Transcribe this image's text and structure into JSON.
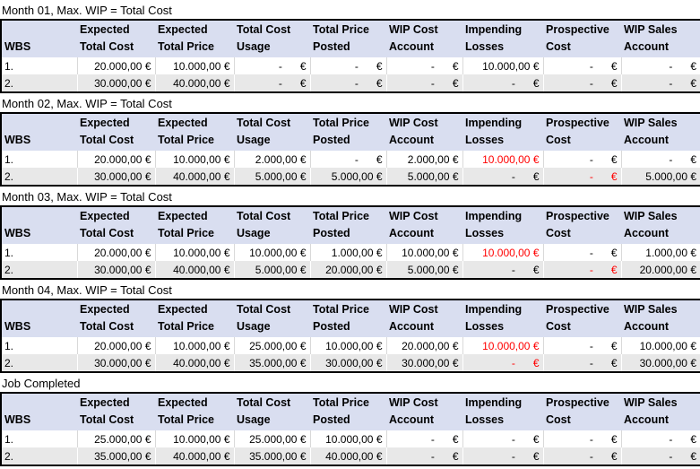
{
  "colors": {
    "header_bg": "#D9DEF0",
    "alt_row_bg": "#E8E8E8",
    "negative_red": "#FF0000",
    "table_border": "#000000",
    "white_row_separator": "#D9D9D9",
    "gray_row_separator": "#FFFFFF"
  },
  "columns": [
    {
      "line1": "",
      "line2": "WBS"
    },
    {
      "line1": "Expected",
      "line2": "Total Cost"
    },
    {
      "line1": "Expected",
      "line2": "Total Price"
    },
    {
      "line1": "Total Cost",
      "line2": "Usage"
    },
    {
      "line1": "Total Price",
      "line2": "Posted"
    },
    {
      "line1": "WIP Cost",
      "line2": "Account"
    },
    {
      "line1": "Impending",
      "line2": "Losses"
    },
    {
      "line1": "Prospective",
      "line2": "Cost"
    },
    {
      "line1": "WIP Sales",
      "line2": "Account"
    }
  ],
  "sections": [
    {
      "title": "Month 01, Max. WIP = Total Cost",
      "rows": [
        {
          "wbs": "1.",
          "cells": [
            {
              "text": "20.000,00 €"
            },
            {
              "text": "10.000,00 €"
            },
            {
              "text": "-      €"
            },
            {
              "text": "-      €"
            },
            {
              "text": "-      €"
            },
            {
              "text": "10.000,00 €"
            },
            {
              "text": "-      €"
            },
            {
              "text": "-      €"
            }
          ]
        },
        {
          "wbs": "2.",
          "cells": [
            {
              "text": "30.000,00 €"
            },
            {
              "text": "40.000,00 €"
            },
            {
              "text": "-      €"
            },
            {
              "text": "-      €"
            },
            {
              "text": "-      €"
            },
            {
              "text": "-      €"
            },
            {
              "text": "-      €"
            },
            {
              "text": "-      €"
            }
          ]
        }
      ]
    },
    {
      "title": "Month 02, Max. WIP = Total Cost",
      "rows": [
        {
          "wbs": "1.",
          "cells": [
            {
              "text": "20.000,00 €"
            },
            {
              "text": "10.000,00 €"
            },
            {
              "text": "2.000,00 €"
            },
            {
              "text": "-      €"
            },
            {
              "text": "2.000,00 €"
            },
            {
              "text": "10.000,00 €",
              "red": true
            },
            {
              "text": "-      €"
            },
            {
              "text": "-      €"
            }
          ]
        },
        {
          "wbs": "2.",
          "cells": [
            {
              "text": "30.000,00 €"
            },
            {
              "text": "40.000,00 €"
            },
            {
              "text": "5.000,00 €"
            },
            {
              "text": "5.000,00 €"
            },
            {
              "text": "5.000,00 €"
            },
            {
              "text": "-      €"
            },
            {
              "text": "-      €",
              "red": true
            },
            {
              "text": "5.000,00 €"
            }
          ]
        }
      ]
    },
    {
      "title": "Month 03, Max. WIP = Total Cost",
      "rows": [
        {
          "wbs": "1.",
          "cells": [
            {
              "text": "20.000,00 €"
            },
            {
              "text": "10.000,00 €"
            },
            {
              "text": "10.000,00 €"
            },
            {
              "text": "1.000,00 €"
            },
            {
              "text": "10.000,00 €"
            },
            {
              "text": "10.000,00 €",
              "red": true
            },
            {
              "text": "-      €"
            },
            {
              "text": "1.000,00 €"
            }
          ]
        },
        {
          "wbs": "2.",
          "cells": [
            {
              "text": "30.000,00 €"
            },
            {
              "text": "40.000,00 €"
            },
            {
              "text": "5.000,00 €"
            },
            {
              "text": "20.000,00 €"
            },
            {
              "text": "5.000,00 €"
            },
            {
              "text": "-      €"
            },
            {
              "text": "-      €",
              "red": true
            },
            {
              "text": "20.000,00 €"
            }
          ]
        }
      ]
    },
    {
      "title": "Month 04, Max. WIP = Total Cost",
      "rows": [
        {
          "wbs": "1.",
          "cells": [
            {
              "text": "20.000,00 €"
            },
            {
              "text": "10.000,00 €"
            },
            {
              "text": "25.000,00 €"
            },
            {
              "text": "10.000,00 €"
            },
            {
              "text": "20.000,00 €"
            },
            {
              "text": "10.000,00 €",
              "red": true
            },
            {
              "text": "-      €"
            },
            {
              "text": "10.000,00 €"
            }
          ]
        },
        {
          "wbs": "2.",
          "cells": [
            {
              "text": "30.000,00 €"
            },
            {
              "text": "40.000,00 €"
            },
            {
              "text": "35.000,00 €"
            },
            {
              "text": "30.000,00 €"
            },
            {
              "text": "30.000,00 €"
            },
            {
              "text": "-      €",
              "red": true
            },
            {
              "text": "-      €"
            },
            {
              "text": "30.000,00 €"
            }
          ]
        }
      ]
    },
    {
      "title": "Job Completed",
      "rows": [
        {
          "wbs": "1.",
          "cells": [
            {
              "text": "25.000,00 €"
            },
            {
              "text": "10.000,00 €"
            },
            {
              "text": "25.000,00 €"
            },
            {
              "text": "10.000,00 €"
            },
            {
              "text": "-      €"
            },
            {
              "text": "-      €"
            },
            {
              "text": "-      €"
            },
            {
              "text": "-      €"
            }
          ]
        },
        {
          "wbs": "2.",
          "cells": [
            {
              "text": "35.000,00 €"
            },
            {
              "text": "40.000,00 €"
            },
            {
              "text": "35.000,00 €"
            },
            {
              "text": "40.000,00 €"
            },
            {
              "text": "-      €"
            },
            {
              "text": "-      €"
            },
            {
              "text": "-      €"
            },
            {
              "text": "-      €"
            }
          ]
        }
      ]
    }
  ]
}
